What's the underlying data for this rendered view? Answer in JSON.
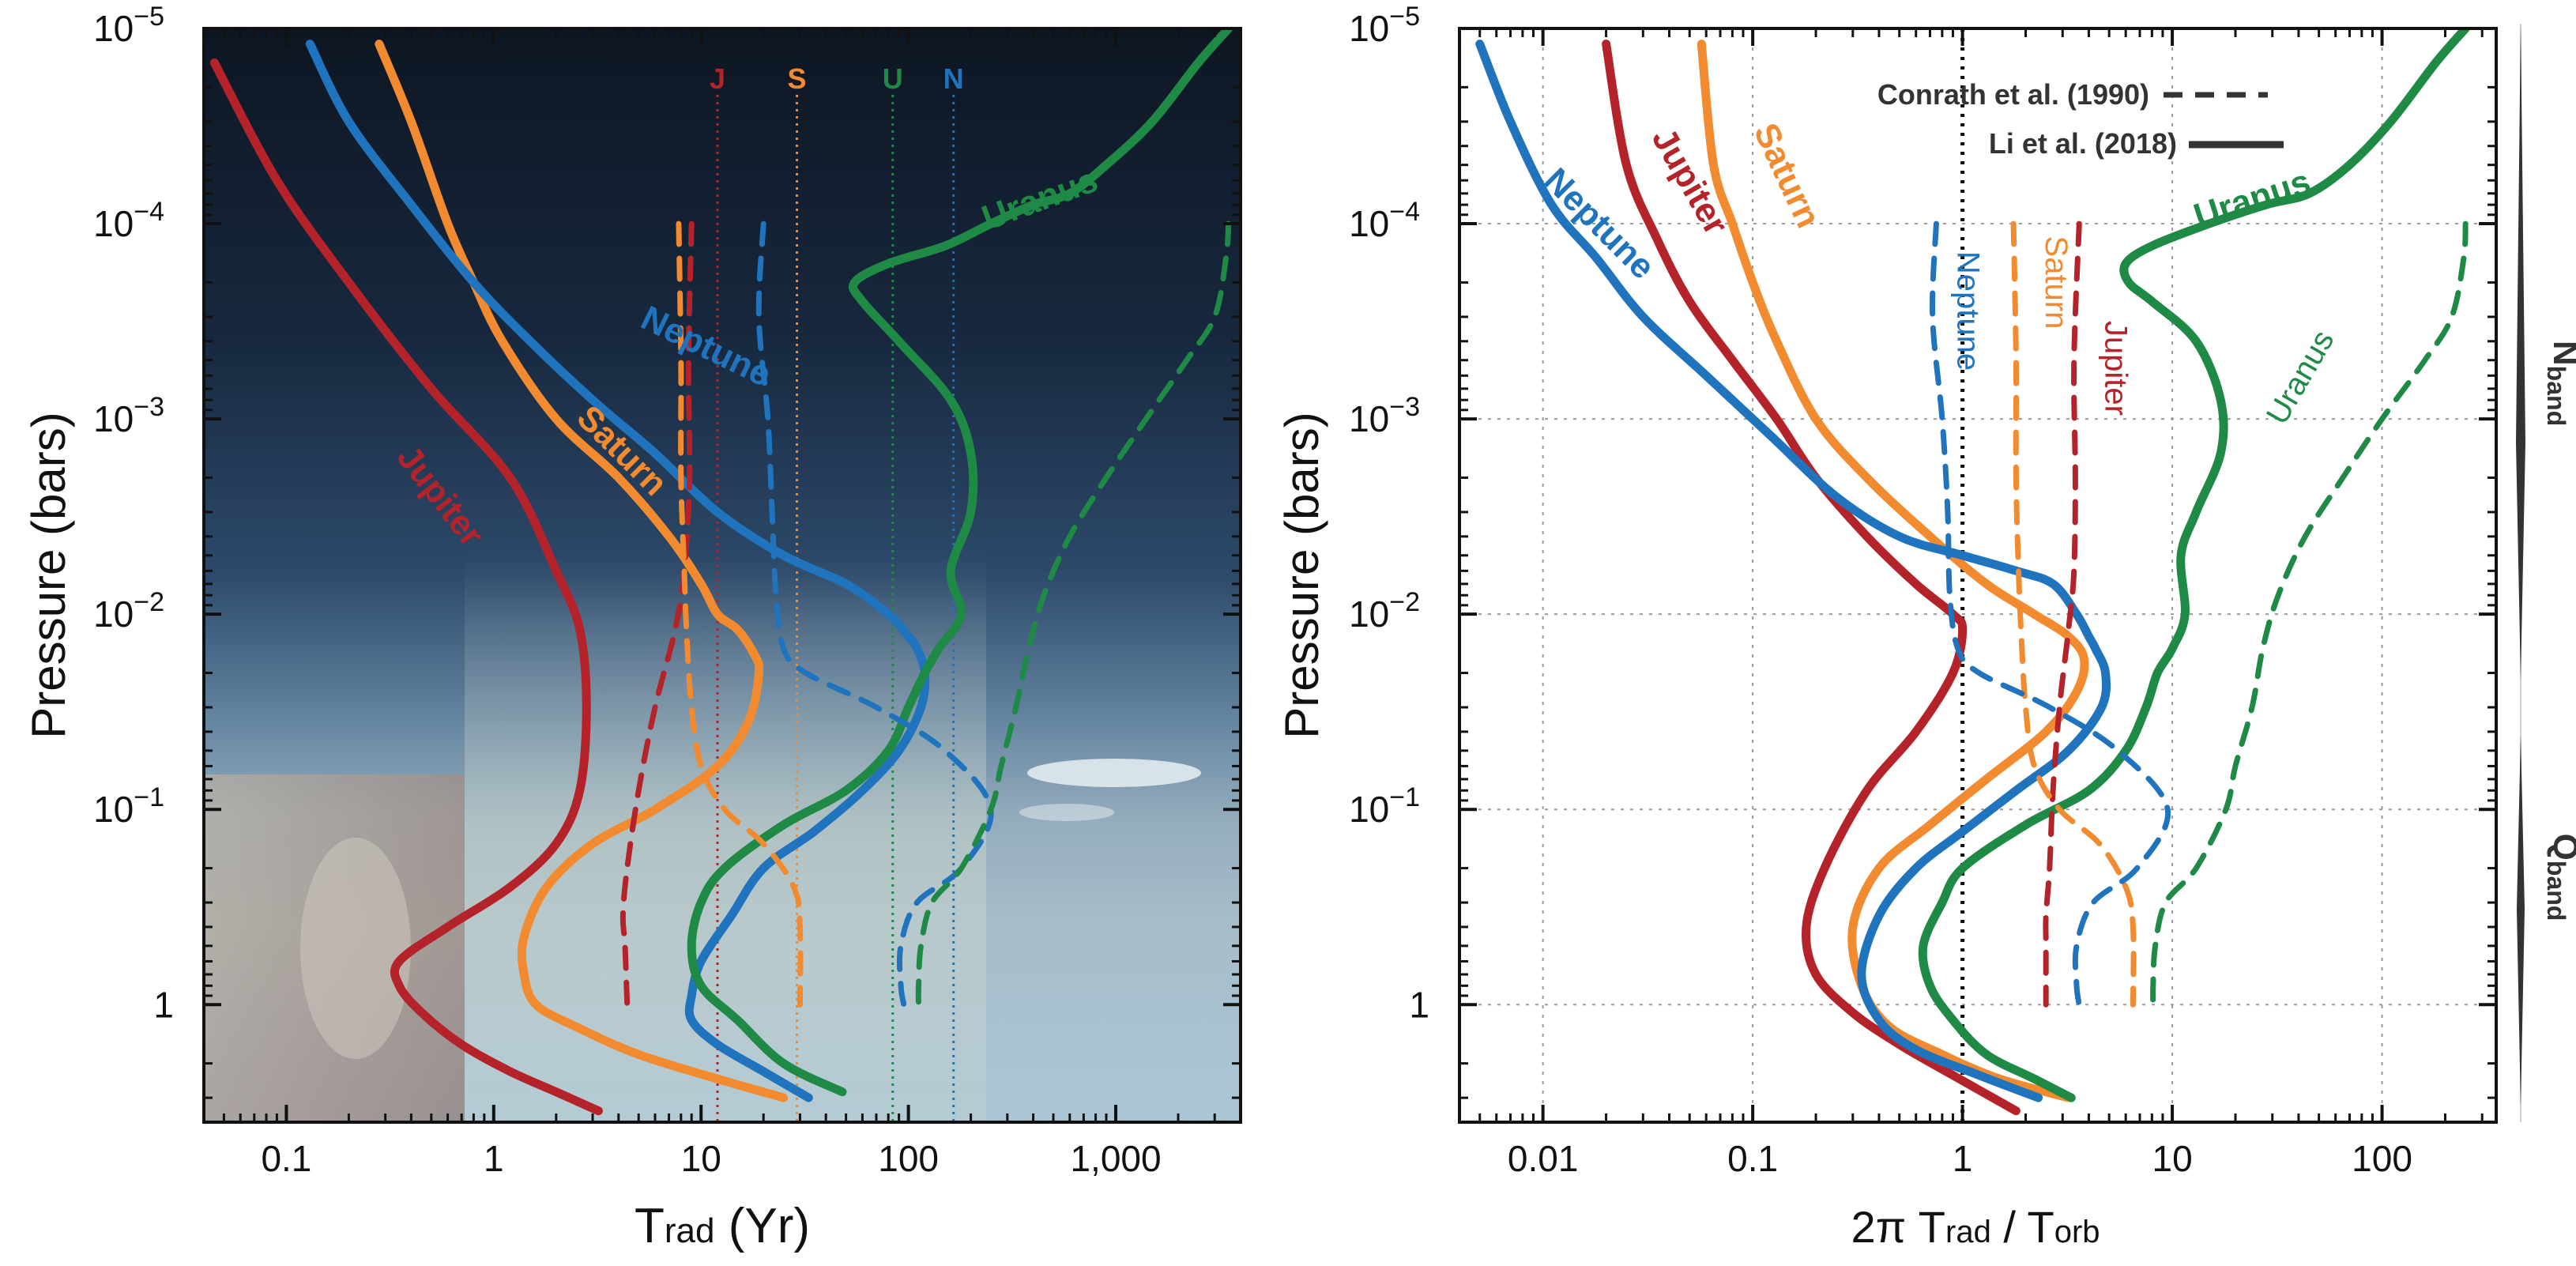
{
  "colors": {
    "jupiter": "#b5232a",
    "saturn": "#f28a30",
    "uranus": "#1e8a46",
    "neptune": "#1f74bd",
    "axis": "#111111",
    "grid": "#9a9a9a",
    "legend_text": "#333333"
  },
  "chart_data": [
    {
      "id": "left",
      "type": "line",
      "xscale": "log",
      "yscale": "log",
      "xlim": [
        0.04,
        4000
      ],
      "ylim": [
        4,
        1e-05
      ],
      "ylabel": "Pressure (bars)",
      "xlabel_main": "T",
      "xlabel_sub": "rad",
      "xlabel_tail": " (Yr)",
      "xticks": [
        0.1,
        1,
        10,
        100,
        1000
      ],
      "xtick_labels": [
        "0.1",
        "1",
        "10",
        "100",
        "1,000"
      ],
      "ytick_labels": [
        {
          "v": 1e-05,
          "base": "10",
          "exp": "−5"
        },
        {
          "v": 0.0001,
          "base": "10",
          "exp": "−4"
        },
        {
          "v": 0.001,
          "base": "10",
          "exp": "−3"
        },
        {
          "v": 0.01,
          "base": "10",
          "exp": "−2"
        },
        {
          "v": 0.1,
          "base": "10",
          "exp": "−1"
        },
        {
          "v": 1,
          "base": "1",
          "exp": ""
        }
      ],
      "orbital_markers": [
        {
          "label": "J",
          "x": 12,
          "planet": "jupiter"
        },
        {
          "label": "S",
          "x": 29,
          "planet": "saturn"
        },
        {
          "label": "U",
          "x": 84,
          "planet": "uranus"
        },
        {
          "label": "N",
          "x": 165,
          "planet": "neptune"
        }
      ],
      "series": [
        {
          "name": "Jupiter",
          "planet": "jupiter",
          "style": "solid",
          "x": [
            0.045,
            0.09,
            0.2,
            0.5,
            1.2,
            2,
            2.6,
            2.8,
            2.6,
            2,
            1.2,
            0.6,
            0.35,
            0.35,
            0.45,
            0.7,
            1.2,
            2,
            3.2
          ],
          "y": [
            1.5e-05,
            6e-05,
            0.0002,
            0.0007,
            0.002,
            0.006,
            0.012,
            0.03,
            0.08,
            0.15,
            0.25,
            0.4,
            0.6,
            0.8,
            1.1,
            1.6,
            2.2,
            2.8,
            3.5
          ]
        },
        {
          "name": "Saturn",
          "planet": "saturn",
          "style": "solid",
          "x": [
            0.28,
            0.4,
            0.6,
            0.8,
            1.1,
            2,
            4,
            7,
            10,
            12,
            15,
            18,
            19,
            17,
            12,
            6,
            3,
            1.8,
            1.4,
            1.4,
            1.6,
            2.5,
            5,
            12,
            25
          ],
          "y": [
            1.2e-05,
            3e-05,
            0.0001,
            0.0002,
            0.0004,
            0.001,
            0.002,
            0.004,
            0.007,
            0.01,
            0.012,
            0.016,
            0.02,
            0.035,
            0.06,
            0.1,
            0.15,
            0.25,
            0.45,
            0.7,
            1,
            1.3,
            1.8,
            2.4,
            3
          ]
        },
        {
          "name": "Neptune",
          "planet": "neptune",
          "style": "solid",
          "x": [
            0.13,
            0.2,
            0.4,
            0.8,
            1.5,
            3,
            6,
            12,
            25,
            50,
            80,
            100,
            110,
            120,
            115,
            90,
            60,
            35,
            20,
            14,
            10,
            9,
            9,
            12,
            20,
            33
          ],
          "y": [
            1.2e-05,
            3e-05,
            8e-05,
            0.0002,
            0.0004,
            0.0008,
            0.0015,
            0.003,
            0.005,
            0.007,
            0.01,
            0.013,
            0.015,
            0.02,
            0.03,
            0.05,
            0.08,
            0.13,
            0.2,
            0.35,
            0.6,
            0.9,
            1.2,
            1.6,
            2.2,
            3
          ]
        },
        {
          "name": "Uranus",
          "planet": "uranus",
          "style": "solid",
          "x": [
            3500,
            2500,
            1500,
            900,
            600,
            400,
            250,
            150,
            80,
            55,
            60,
            90,
            160,
            200,
            200,
            160,
            180,
            140,
            120,
            100,
            80,
            50,
            25,
            13,
            10,
            9,
            10,
            15,
            25,
            48
          ],
          "y": [
            1e-05,
            1.5e-05,
            3e-05,
            5e-05,
            7e-05,
            8e-05,
            0.0001,
            0.00013,
            0.00016,
            0.0002,
            0.00025,
            0.0004,
            0.0008,
            0.0015,
            0.003,
            0.006,
            0.01,
            0.015,
            0.02,
            0.03,
            0.05,
            0.08,
            0.12,
            0.2,
            0.3,
            0.5,
            0.8,
            1.2,
            2,
            2.8
          ]
        },
        {
          "name": "Jupiter (Conrath)",
          "planet": "jupiter",
          "style": "dashed",
          "x": [
            9,
            8.7,
            8.8,
            8.3,
            7.5,
            6,
            5,
            4.4,
            4.2,
            4.3,
            4.4
          ],
          "y": [
            0.0001,
            0.0005,
            0.002,
            0.006,
            0.012,
            0.03,
            0.08,
            0.2,
            0.35,
            0.5,
            1
          ]
        },
        {
          "name": "Saturn (Conrath)",
          "planet": "saturn",
          "style": "dashed",
          "x": [
            7.8,
            8,
            8,
            8.3,
            8.5,
            9,
            10,
            13,
            20,
            28,
            30,
            30
          ],
          "y": [
            0.0001,
            0.0005,
            0.002,
            0.006,
            0.012,
            0.03,
            0.06,
            0.1,
            0.15,
            0.25,
            0.4,
            1
          ]
        },
        {
          "name": "Neptune (Conrath)",
          "planet": "neptune",
          "style": "dashed",
          "x": [
            20,
            19,
            21,
            22,
            23,
            25,
            32,
            70,
            150,
            250,
            180,
            110,
            92,
            92,
            95
          ],
          "y": [
            0.0001,
            0.0003,
            0.001,
            0.003,
            0.008,
            0.015,
            0.02,
            0.03,
            0.05,
            0.1,
            0.2,
            0.3,
            0.5,
            0.8,
            1
          ]
        },
        {
          "name": "Uranus (Conrath)",
          "planet": "uranus",
          "style": "dashed",
          "x": [
            3500,
            3400,
            3000,
            2200,
            1400,
            900,
            600,
            450,
            380,
            330,
            280,
            250,
            180,
            130,
            115,
            112,
            112
          ],
          "y": [
            0.0001,
            0.00015,
            0.0003,
            0.0005,
            0.001,
            0.002,
            0.004,
            0.008,
            0.015,
            0.03,
            0.06,
            0.1,
            0.2,
            0.3,
            0.5,
            0.8,
            1
          ]
        }
      ],
      "labels": [
        {
          "text": "Jupiter",
          "planet": "jupiter",
          "x": 0.5,
          "y": 0.0027,
          "rot": 52
        },
        {
          "text": "Saturn",
          "planet": "saturn",
          "x": 3.8,
          "y": 0.0016,
          "rot": 45
        },
        {
          "text": "Neptune",
          "planet": "neptune",
          "x": 10,
          "y": 0.00048,
          "rot": 26
        },
        {
          "text": "Uranus",
          "planet": "uranus",
          "x": 450,
          "y": 8.5e-05,
          "rot": -20
        }
      ]
    },
    {
      "id": "right",
      "type": "line",
      "xscale": "log",
      "yscale": "log",
      "xlim": [
        0.004,
        350
      ],
      "ylim": [
        4,
        1e-05
      ],
      "ylabel": "Pressure (bars)",
      "xlabel_pre": "2π T",
      "xlabel_sub1": "rad",
      "xlabel_mid": " / T",
      "xlabel_sub2": "orb",
      "xticks": [
        0.01,
        0.1,
        1,
        10,
        100
      ],
      "xtick_labels": [
        "0.01",
        "0.1",
        "1",
        "10",
        "100"
      ],
      "grid": true,
      "vline_x": 1,
      "ytick_labels": [
        {
          "v": 1e-05,
          "base": "10",
          "exp": "−5"
        },
        {
          "v": 0.0001,
          "base": "10",
          "exp": "−4"
        },
        {
          "v": 0.001,
          "base": "10",
          "exp": "−3"
        },
        {
          "v": 0.01,
          "base": "10",
          "exp": "−2"
        },
        {
          "v": 0.1,
          "base": "10",
          "exp": "−1"
        },
        {
          "v": 1,
          "base": "1",
          "exp": ""
        }
      ],
      "legend": [
        {
          "text": "Conrath et al. (1990)",
          "style": "dashed"
        },
        {
          "text": "Li et al. (2018)",
          "style": "solid"
        }
      ],
      "series": [
        {
          "name": "Jupiter",
          "planet": "jupiter",
          "style": "solid",
          "x": [
            0.02,
            0.025,
            0.035,
            0.05,
            0.08,
            0.13,
            0.2,
            0.35,
            0.6,
            0.9,
            1.0,
            0.9,
            0.6,
            0.35,
            0.22,
            0.18,
            0.2,
            0.3,
            0.5,
            0.9,
            1.8
          ],
          "y": [
            1.2e-05,
            5e-05,
            0.00012,
            0.00025,
            0.0005,
            0.001,
            0.002,
            0.004,
            0.007,
            0.01,
            0.012,
            0.02,
            0.04,
            0.08,
            0.2,
            0.4,
            0.7,
            1.1,
            1.6,
            2.3,
            3.5
          ]
        },
        {
          "name": "Saturn",
          "planet": "saturn",
          "style": "solid",
          "x": [
            0.057,
            0.065,
            0.08,
            0.1,
            0.13,
            0.2,
            0.35,
            0.7,
            1.3,
            2.2,
            3.2,
            3.8,
            3.5,
            2.5,
            1.3,
            0.7,
            0.4,
            0.3,
            0.33,
            0.45,
            0.8,
            1.5,
            3.2
          ],
          "y": [
            1.2e-05,
            5e-05,
            0.0001,
            0.0002,
            0.0004,
            0.001,
            0.002,
            0.004,
            0.007,
            0.01,
            0.013,
            0.017,
            0.025,
            0.04,
            0.07,
            0.12,
            0.2,
            0.4,
            0.8,
            1.3,
            1.8,
            2.4,
            3
          ]
        },
        {
          "name": "Neptune",
          "planet": "neptune",
          "style": "solid",
          "x": [
            0.005,
            0.007,
            0.011,
            0.018,
            0.03,
            0.06,
            0.12,
            0.25,
            0.5,
            1.0,
            1.8,
            2.7,
            3.5,
            4,
            4.3,
            4.8,
            4.6,
            3.2,
            1.8,
            1.0,
            0.6,
            0.4,
            0.33,
            0.4,
            0.6,
            1.2,
            2.3
          ],
          "y": [
            1.2e-05,
            3e-05,
            8e-05,
            0.00015,
            0.0003,
            0.0006,
            0.0012,
            0.0025,
            0.004,
            0.005,
            0.006,
            0.007,
            0.01,
            0.013,
            0.015,
            0.02,
            0.03,
            0.05,
            0.08,
            0.13,
            0.2,
            0.35,
            0.7,
            1.2,
            1.7,
            2.3,
            3
          ]
        },
        {
          "name": "Uranus",
          "planet": "uranus",
          "style": "solid",
          "x": [
            250,
            180,
            110,
            70,
            45,
            28,
            15,
            8,
            6,
            6.2,
            8,
            13,
            17,
            17,
            13,
            11,
            11.5,
            10,
            8.5,
            7.5,
            6,
            4,
            2,
            1,
            0.8,
            0.65,
            0.7,
            0.9,
            1.3,
            2.2,
            3.3
          ],
          "y": [
            1e-05,
            1.5e-05,
            3e-05,
            5e-05,
            7e-05,
            8e-05,
            0.0001,
            0.00013,
            0.00016,
            0.0002,
            0.00025,
            0.0004,
            0.0008,
            0.0015,
            0.003,
            0.005,
            0.01,
            0.015,
            0.02,
            0.03,
            0.05,
            0.08,
            0.12,
            0.2,
            0.3,
            0.5,
            0.8,
            1.2,
            1.8,
            2.4,
            3
          ]
        },
        {
          "name": "Jupiter (Conrath)",
          "planet": "jupiter",
          "style": "dashed",
          "x": [
            3.6,
            3.4,
            3.45,
            3.4,
            3.2,
            2.9,
            2.7,
            2.6,
            2.5,
            2.5,
            2.5
          ],
          "y": [
            0.0001,
            0.0005,
            0.002,
            0.006,
            0.012,
            0.03,
            0.08,
            0.2,
            0.35,
            0.5,
            1
          ]
        },
        {
          "name": "Saturn (Conrath)",
          "planet": "saturn",
          "style": "dashed",
          "x": [
            1.75,
            1.8,
            1.8,
            1.85,
            1.9,
            2.0,
            2.2,
            2.9,
            4.5,
            6,
            6.5,
            6.5
          ],
          "y": [
            0.0001,
            0.0005,
            0.002,
            0.006,
            0.012,
            0.03,
            0.06,
            0.1,
            0.15,
            0.25,
            0.4,
            1
          ]
        },
        {
          "name": "Neptune (Conrath)",
          "planet": "neptune",
          "style": "dashed",
          "x": [
            0.75,
            0.72,
            0.8,
            0.85,
            0.87,
            0.95,
            1.2,
            2.6,
            5.5,
            9.5,
            6.8,
            4.2,
            3.5,
            3.5,
            3.6
          ],
          "y": [
            0.0001,
            0.0003,
            0.001,
            0.003,
            0.008,
            0.015,
            0.02,
            0.03,
            0.05,
            0.1,
            0.2,
            0.3,
            0.5,
            0.8,
            1
          ]
        },
        {
          "name": "Uranus (Conrath)",
          "planet": "uranus",
          "style": "dashed",
          "x": [
            250,
            245,
            215,
            160,
            100,
            65,
            43,
            32,
            27,
            24,
            20,
            18,
            13,
            9.3,
            8.3,
            8.1,
            8.1
          ],
          "y": [
            0.0001,
            0.00015,
            0.0003,
            0.0005,
            0.001,
            0.002,
            0.004,
            0.008,
            0.015,
            0.03,
            0.06,
            0.1,
            0.2,
            0.3,
            0.5,
            0.8,
            1
          ]
        }
      ],
      "labels": [
        {
          "text": "Neptune",
          "planet": "neptune",
          "x": 0.017,
          "y": 0.00011,
          "rot": 45
        },
        {
          "text": "Jupiter",
          "planet": "jupiter",
          "x": 0.045,
          "y": 6.5e-05,
          "rot": 60
        },
        {
          "text": "Saturn",
          "planet": "saturn",
          "x": 0.13,
          "y": 6e-05,
          "rot": 65
        },
        {
          "text": "Uranus",
          "planet": "uranus",
          "x": 25,
          "y": 8.5e-05,
          "rot": -18
        }
      ],
      "dash_labels": [
        {
          "text": "Neptune",
          "planet": "neptune",
          "x": 0.95,
          "y": 0.00028,
          "rot": 90
        },
        {
          "text": "Saturn",
          "planet": "saturn",
          "x": 2.5,
          "y": 0.0002,
          "rot": 90
        },
        {
          "text": "Jupiter",
          "planet": "jupiter",
          "x": 4.8,
          "y": 0.00055,
          "rot": 90
        },
        {
          "text": "Uranus",
          "planet": "uranus",
          "x": 45,
          "y": 0.00065,
          "rot": -60
        }
      ]
    }
  ],
  "bands": [
    {
      "label": "N",
      "sub": "band"
    },
    {
      "label": "Q",
      "sub": "band"
    }
  ]
}
